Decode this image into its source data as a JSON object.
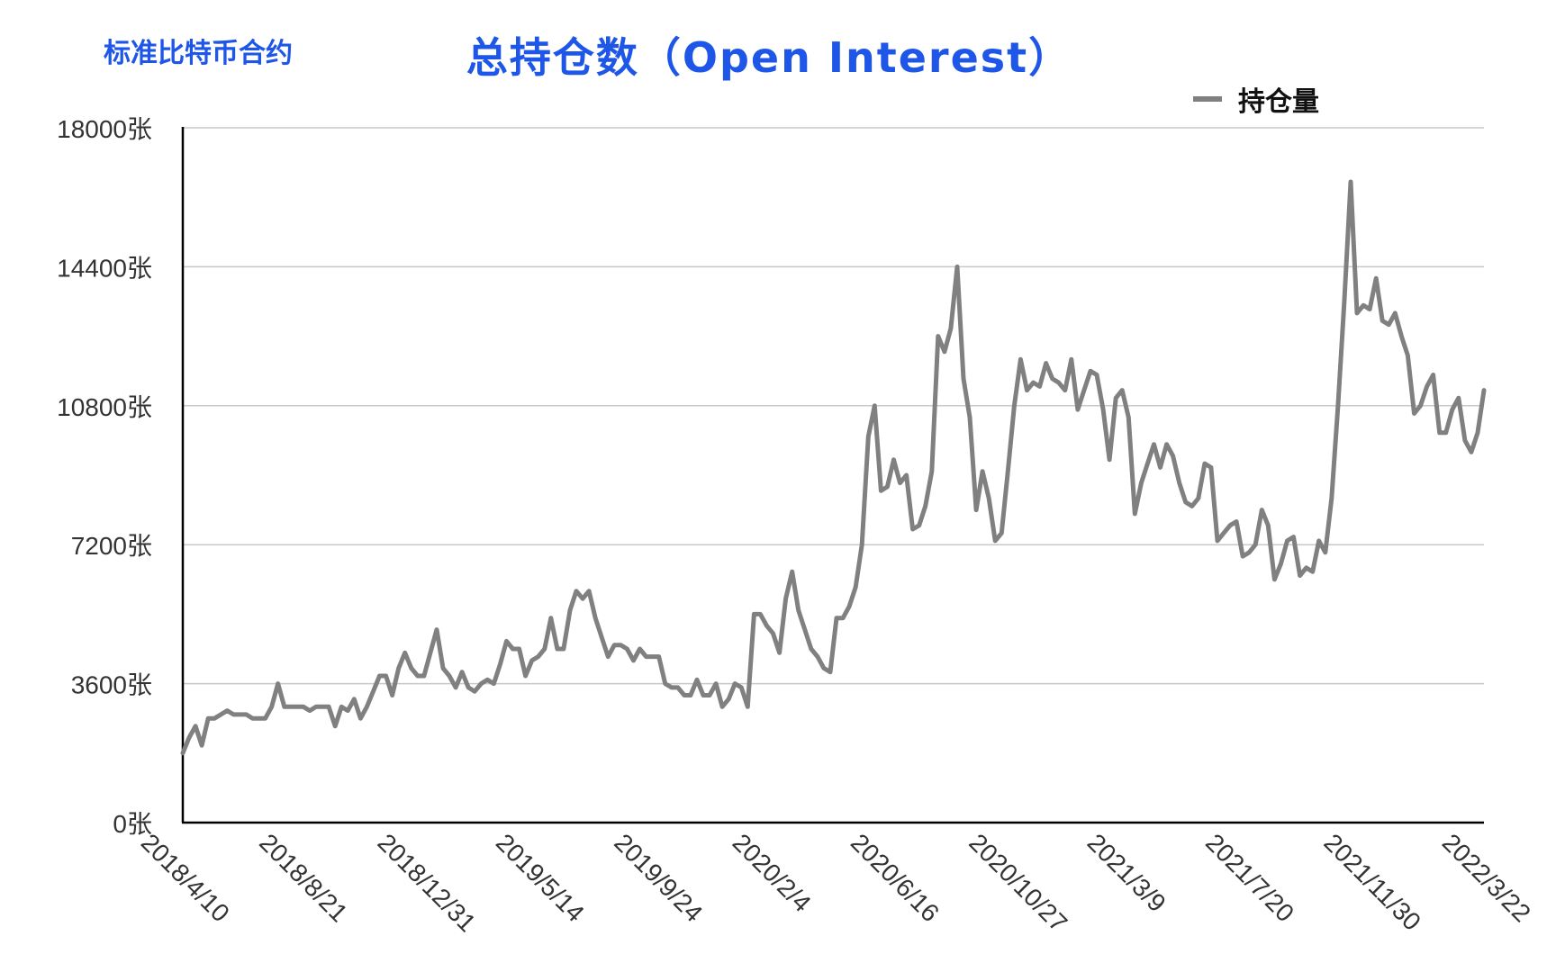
{
  "top_label": "标准比特币合约",
  "chart_data": {
    "type": "line",
    "title": "总持仓数（Open Interest）",
    "xlabel": "",
    "ylabel": "",
    "ylim": [
      0,
      18000
    ],
    "y_ticks": [
      0,
      3600,
      7200,
      10800,
      14400,
      18000
    ],
    "y_tick_labels": [
      "0张",
      "3600张",
      "7200张",
      "10800张",
      "14400张",
      "18000张"
    ],
    "x_tick_labels": [
      "2018/4/10",
      "2018/8/21",
      "2018/12/31",
      "2019/5/14",
      "2019/9/24",
      "2020/2/4",
      "2020/6/16",
      "2020/10/27",
      "2021/3/9",
      "2021/7/20",
      "2021/11/30",
      "2022/3/22"
    ],
    "grid": true,
    "legend": "top-right",
    "series": [
      {
        "name": "持仓量",
        "color": "#808080",
        "values": [
          1800,
          2200,
          2500,
          2000,
          2700,
          2700,
          2800,
          2900,
          2800,
          2800,
          2800,
          2700,
          2700,
          2700,
          3000,
          3600,
          3000,
          3000,
          3000,
          3000,
          2900,
          3000,
          3000,
          3000,
          2500,
          3000,
          2900,
          3200,
          2700,
          3000,
          3400,
          3800,
          3800,
          3300,
          4000,
          4400,
          4000,
          3800,
          3800,
          4400,
          5000,
          4000,
          3800,
          3500,
          3900,
          3500,
          3400,
          3600,
          3700,
          3600,
          4100,
          4700,
          4500,
          4500,
          3800,
          4200,
          4300,
          4500,
          5300,
          4500,
          4500,
          5500,
          6000,
          5800,
          6000,
          5300,
          4800,
          4300,
          4600,
          4600,
          4500,
          4200,
          4500,
          4300,
          4300,
          4300,
          3600,
          3500,
          3500,
          3300,
          3300,
          3700,
          3300,
          3300,
          3600,
          3000,
          3200,
          3600,
          3500,
          3000,
          5400,
          5400,
          5100,
          4900,
          4400,
          5800,
          6500,
          5500,
          5000,
          4500,
          4300,
          4000,
          3900,
          5300,
          5300,
          5600,
          6100,
          7200,
          10000,
          10800,
          8600,
          8700,
          9400,
          8800,
          9000,
          7600,
          7700,
          8200,
          9100,
          12600,
          12200,
          12800,
          14400,
          11500,
          10500,
          8100,
          9100,
          8400,
          7300,
          7500,
          9100,
          10800,
          12000,
          11200,
          11400,
          11300,
          11900,
          11500,
          11400,
          11200,
          12000,
          10700,
          11200,
          11700,
          11600,
          10700,
          9400,
          11000,
          11200,
          10500,
          8000,
          8800,
          9300,
          9800,
          9200,
          9800,
          9500,
          8800,
          8300,
          8200,
          8400,
          9300,
          9200,
          7300,
          7500,
          7700,
          7800,
          6900,
          7000,
          7200,
          8100,
          7700,
          6300,
          6700,
          7300,
          7400,
          6400,
          6600,
          6500,
          7300,
          7000,
          8400,
          10800,
          13500,
          16600,
          13200,
          13400,
          13300,
          14100,
          13000,
          12900,
          13200,
          12600,
          12100,
          10600,
          10800,
          11300,
          11600,
          10100,
          10100,
          10700,
          11000,
          9900,
          9600,
          10100,
          11200
        ]
      }
    ]
  }
}
